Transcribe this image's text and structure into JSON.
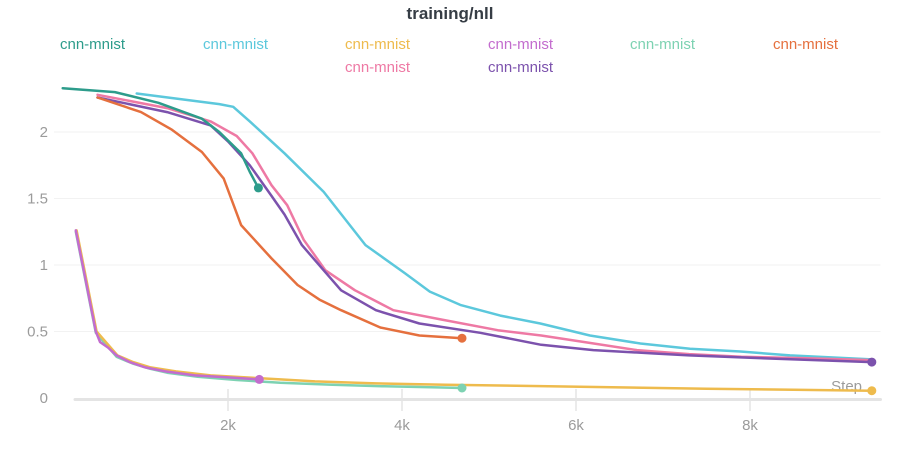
{
  "chart_data": {
    "type": "line",
    "title": "training/nll",
    "xlabel": "Step",
    "ylabel": "",
    "xlim": [
      0,
      9500
    ],
    "ylim": [
      0,
      2.35
    ],
    "grid": "horizontal",
    "legend_position": "top",
    "x_ticks": [
      {
        "value": 2000,
        "label": "2k"
      },
      {
        "value": 4000,
        "label": "4k"
      },
      {
        "value": 6000,
        "label": "6k"
      },
      {
        "value": 8000,
        "label": "8k"
      }
    ],
    "y_ticks": [
      {
        "value": 0,
        "label": "0"
      },
      {
        "value": 0.5,
        "label": "0.5"
      },
      {
        "value": 1,
        "label": "1"
      },
      {
        "value": 1.5,
        "label": "1.5"
      },
      {
        "value": 2,
        "label": "2"
      }
    ],
    "colors": {
      "title": "#363d45",
      "axis_text": "#9b9b9b",
      "gridline": "#f2f2f2",
      "axis_line": "#e4e4e4",
      "background": "#ffffff"
    },
    "series": [
      {
        "name": "cnn-mnist",
        "color": "#2d9c8b",
        "legend_col": 0,
        "legend_row": 0,
        "end_marker": true,
        "points": [
          [
            100,
            2.33
          ],
          [
            700,
            2.3
          ],
          [
            1200,
            2.22
          ],
          [
            1700,
            2.1
          ],
          [
            1900,
            2.0
          ],
          [
            2150,
            1.84
          ],
          [
            2250,
            1.7
          ],
          [
            2350,
            1.58
          ]
        ]
      },
      {
        "name": "cnn-mnist",
        "color": "#5cc8dc",
        "legend_col": 1,
        "legend_row": 0,
        "end_marker": false,
        "points": [
          [
            950,
            2.29
          ],
          [
            1900,
            2.21
          ],
          [
            2060,
            2.19
          ],
          [
            2250,
            2.08
          ],
          [
            2450,
            1.96
          ],
          [
            2650,
            1.84
          ],
          [
            3100,
            1.55
          ],
          [
            3580,
            1.15
          ],
          [
            4030,
            0.94
          ],
          [
            4320,
            0.8
          ],
          [
            4670,
            0.7
          ],
          [
            5130,
            0.62
          ],
          [
            5590,
            0.56
          ],
          [
            6160,
            0.47
          ],
          [
            6740,
            0.41
          ],
          [
            7310,
            0.37
          ],
          [
            7890,
            0.35
          ],
          [
            8460,
            0.32
          ],
          [
            9400,
            0.29
          ]
        ]
      },
      {
        "name": "cnn-mnist",
        "color": "#eebb4d",
        "legend_col": 2,
        "legend_row": 0,
        "end_marker": true,
        "points": [
          [
            260,
            1.26
          ],
          [
            490,
            0.5
          ],
          [
            730,
            0.32
          ],
          [
            910,
            0.27
          ],
          [
            1110,
            0.23
          ],
          [
            1400,
            0.2
          ],
          [
            1800,
            0.17
          ],
          [
            2350,
            0.15
          ],
          [
            3000,
            0.125
          ],
          [
            3700,
            0.11
          ],
          [
            4500,
            0.1
          ],
          [
            5500,
            0.09
          ],
          [
            6500,
            0.08
          ],
          [
            7500,
            0.07
          ],
          [
            8500,
            0.062
          ],
          [
            9400,
            0.055
          ]
        ]
      },
      {
        "name": "cnn-mnist",
        "color": "#ee79a4",
        "legend_col": 2,
        "legend_row": 1,
        "end_marker": false,
        "points": [
          [
            500,
            2.28
          ],
          [
            1300,
            2.18
          ],
          [
            1800,
            2.08
          ],
          [
            2100,
            1.97
          ],
          [
            2280,
            1.84
          ],
          [
            2500,
            1.6
          ],
          [
            2680,
            1.45
          ],
          [
            2870,
            1.19
          ],
          [
            3120,
            0.96
          ],
          [
            3460,
            0.81
          ],
          [
            3900,
            0.66
          ],
          [
            4450,
            0.59
          ],
          [
            5100,
            0.51
          ],
          [
            5600,
            0.47
          ],
          [
            6100,
            0.42
          ],
          [
            6700,
            0.36
          ],
          [
            7300,
            0.33
          ],
          [
            7900,
            0.31
          ],
          [
            8600,
            0.3
          ],
          [
            9400,
            0.285
          ]
        ]
      },
      {
        "name": "cnn-mnist",
        "color": "#c36cce",
        "legend_col": 3,
        "legend_row": 0,
        "end_marker": true,
        "points": [
          [
            250,
            1.26
          ],
          [
            480,
            0.5
          ],
          [
            530,
            0.42
          ],
          [
            620,
            0.38
          ],
          [
            720,
            0.32
          ],
          [
            870,
            0.27
          ],
          [
            1050,
            0.23
          ],
          [
            1280,
            0.2
          ],
          [
            1620,
            0.17
          ],
          [
            2000,
            0.155
          ],
          [
            2360,
            0.14
          ]
        ]
      },
      {
        "name": "cnn-mnist",
        "color": "#7c52ad",
        "legend_col": 3,
        "legend_row": 1,
        "end_marker": true,
        "points": [
          [
            500,
            2.26
          ],
          [
            1300,
            2.15
          ],
          [
            1800,
            2.05
          ],
          [
            2000,
            1.93
          ],
          [
            2250,
            1.75
          ],
          [
            2500,
            1.52
          ],
          [
            2650,
            1.38
          ],
          [
            2850,
            1.15
          ],
          [
            3100,
            0.96
          ],
          [
            3300,
            0.81
          ],
          [
            3700,
            0.66
          ],
          [
            4200,
            0.56
          ],
          [
            4900,
            0.49
          ],
          [
            5600,
            0.4
          ],
          [
            6200,
            0.36
          ],
          [
            6900,
            0.335
          ],
          [
            7300,
            0.32
          ],
          [
            8300,
            0.295
          ],
          [
            9400,
            0.27
          ]
        ]
      },
      {
        "name": "cnn-mnist",
        "color": "#7dd2b2",
        "legend_col": 4,
        "legend_row": 0,
        "end_marker": true,
        "points": [
          [
            250,
            1.25
          ],
          [
            480,
            0.49
          ],
          [
            720,
            0.31
          ],
          [
            900,
            0.26
          ],
          [
            1100,
            0.22
          ],
          [
            1300,
            0.19
          ],
          [
            1650,
            0.16
          ],
          [
            2100,
            0.135
          ],
          [
            2600,
            0.115
          ],
          [
            3200,
            0.1
          ],
          [
            3800,
            0.088
          ],
          [
            4400,
            0.08
          ],
          [
            4690,
            0.075
          ]
        ]
      },
      {
        "name": "cnn-mnist",
        "color": "#e5703e",
        "legend_col": 5,
        "legend_row": 0,
        "end_marker": true,
        "points": [
          [
            500,
            2.26
          ],
          [
            1000,
            2.15
          ],
          [
            1350,
            2.02
          ],
          [
            1700,
            1.85
          ],
          [
            1950,
            1.65
          ],
          [
            2150,
            1.3
          ],
          [
            2500,
            1.05
          ],
          [
            2800,
            0.85
          ],
          [
            3050,
            0.74
          ],
          [
            3300,
            0.66
          ],
          [
            3750,
            0.53
          ],
          [
            4200,
            0.47
          ],
          [
            4690,
            0.45
          ]
        ]
      }
    ]
  }
}
